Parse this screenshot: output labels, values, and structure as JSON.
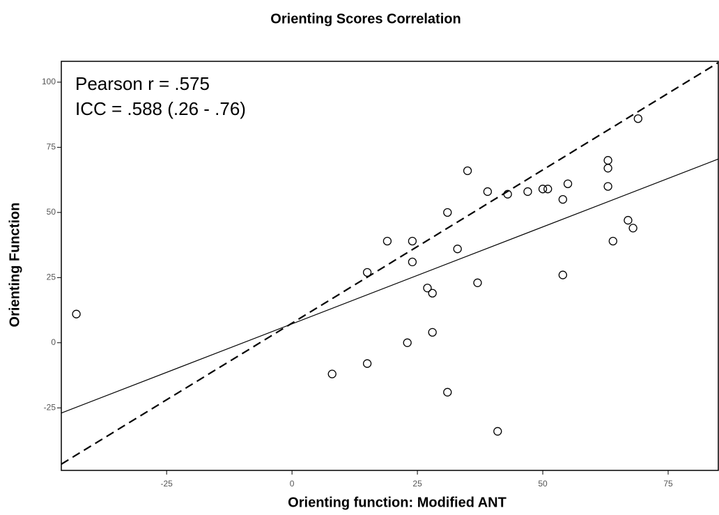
{
  "chart_data": {
    "type": "scatter",
    "title": "Orienting Scores Correlation",
    "x_label": "Orienting function: Modified ANT",
    "y_label": "Orienting Function",
    "annotations": [
      "Pearson r = .575",
      "ICC = .588 (.26 - .76)"
    ],
    "xlim": [
      -46,
      85
    ],
    "ylim": [
      -49,
      108
    ],
    "xticks": [
      -25,
      0,
      25,
      50,
      75
    ],
    "yticks": [
      -25,
      0,
      25,
      50,
      75,
      100
    ],
    "series": [
      {
        "color": "#000000",
        "x": [
          -43,
          8,
          15,
          15,
          19,
          23,
          24,
          24,
          27,
          28,
          28,
          31,
          31,
          33,
          35,
          37,
          39,
          41,
          43,
          47,
          50,
          51,
          54,
          54,
          55,
          63,
          63,
          63,
          64,
          67,
          68,
          69
        ],
        "values": [
          11,
          -12,
          27,
          -8,
          39,
          0,
          39,
          31,
          21,
          19,
          4,
          50,
          -19,
          36,
          66,
          23,
          58,
          -34,
          57,
          58,
          59,
          59,
          55,
          26,
          61,
          70,
          67,
          60,
          39,
          47,
          44,
          86
        ]
      }
    ],
    "lines": [
      {
        "style": "solid",
        "x": [
          -46,
          85
        ],
        "y": [
          -27,
          70.5
        ]
      },
      {
        "style": "dashed",
        "x": [
          -46,
          85
        ],
        "y": [
          -46.6,
          107.5
        ]
      }
    ]
  }
}
